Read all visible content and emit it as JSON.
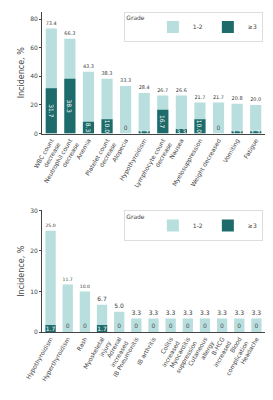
{
  "chart_data": [
    {
      "type": "bar",
      "categories": [
        "WBC count\ndecrease",
        "Neutrophil count\ndecrease",
        "Anemia",
        "Platelet count\ndecrease",
        "Alopecia",
        "Hypothyroidism",
        "Lymphocyte count\ndecrease",
        "Nausea",
        "Myelosuppression",
        "Weight decreased",
        "Vomiting",
        "Fatigue"
      ],
      "series": [
        {
          "name": "1-2",
          "color": "#b8dede",
          "values": [
            73.4,
            66.3,
            43.3,
            38.3,
            33.3,
            28.4,
            26.7,
            26.6,
            21.7,
            21.7,
            20.8,
            20.0
          ],
          "value_labels": [
            "73.4",
            "66.3",
            "43.3",
            "38.3",
            "33.3",
            "28.4",
            "26.7",
            "26.6",
            "21.7",
            "21.7",
            "20.8",
            "20.0"
          ]
        },
        {
          "name": "≥3",
          "color": "#1e6b6b",
          "values": [
            31.7,
            38.3,
            8.3,
            10.0,
            0,
            1.7,
            16.7,
            3.3,
            10.0,
            0,
            1.7,
            1.7
          ],
          "value_labels": [
            "31.7",
            "38.3",
            "8.3",
            "10.0",
            "0",
            "1.7",
            "16.7",
            "3.3",
            "10.0",
            "0",
            "1.7",
            "1.7"
          ]
        }
      ],
      "ylabel": "Incidence, %",
      "ylim": [
        0,
        85
      ],
      "yticks": [
        0,
        20,
        40,
        60,
        80
      ],
      "stacked": false,
      "data_labels": true,
      "legend": "upper right",
      "legend_title": "Grade",
      "grid": false
    },
    {
      "type": "bar",
      "categories": [
        "Hypothyroidism",
        "Hyperthyroidism",
        "Rash",
        "Myoskeletal\ninjury",
        "Adrenal\nincreased",
        "IB Pneumonitis",
        "IB arthritis",
        "Colitis\nincreased",
        "Myocarditis\nsuppression",
        "Cutaneous\nallergy",
        "B-HCG\nincreased",
        "Blood\ncomplication",
        "Headache"
      ],
      "series": [
        {
          "name": "1-2",
          "color": "#b8dede",
          "values": [
            25.0,
            11.7,
            10.0,
            6.7,
            5.0,
            3.3,
            3.3,
            3.3,
            3.3,
            3.3,
            3.3,
            3.3,
            3.3
          ],
          "value_labels": [
            "25.0",
            "11.7",
            "10.0",
            "6.7",
            "5.0",
            "3.3",
            "3.3",
            "3.3",
            "3.3",
            "3.3",
            "3.3",
            "3.3",
            "3.3"
          ]
        },
        {
          "name": "≥3",
          "color": "#1e6b6b",
          "values": [
            1.7,
            0,
            0,
            1.7,
            0,
            0,
            0,
            0,
            0,
            0,
            0,
            0,
            0
          ],
          "value_labels": [
            "1.7",
            "0",
            "0",
            "1.7",
            "0",
            "0",
            "0",
            "0",
            "0",
            "0",
            "0",
            "0",
            "0"
          ]
        }
      ],
      "ylabel": "Incidence, %",
      "ylim": [
        0,
        30
      ],
      "yticks": [
        0,
        10,
        20,
        30
      ],
      "stacked": false,
      "data_labels": true,
      "legend": "upper right",
      "legend_title": "Grade",
      "grid": false
    }
  ]
}
